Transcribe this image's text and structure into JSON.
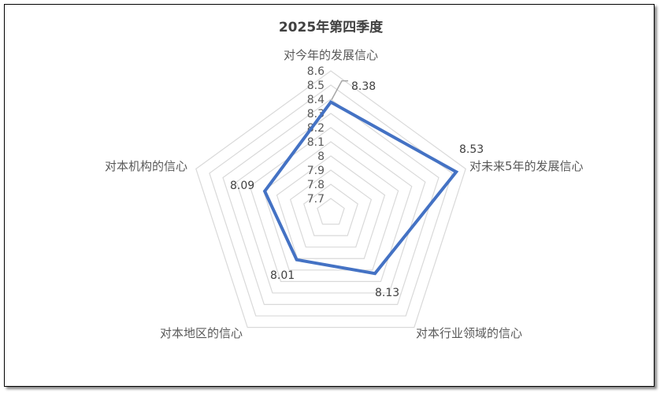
{
  "chart_data": {
    "type": "radar",
    "title": "2025年第四季度",
    "categories": [
      "对今年的发展信心",
      "对未来5年的发展信心",
      "对本行业领域的信心",
      "对本地区的信心",
      "对本机构的信心"
    ],
    "values": [
      8.38,
      8.53,
      8.13,
      8.01,
      8.09
    ],
    "data_labels": [
      "8.38",
      "8.53",
      "8.13",
      "8.01",
      "8.09"
    ],
    "rlim": [
      7.6,
      8.6
    ],
    "ticks": [
      "7.7",
      "7.8",
      "7.9",
      "8",
      "8.1",
      "8.2",
      "8.3",
      "8.4",
      "8.5",
      "8.6"
    ],
    "grid": true,
    "legend": "none",
    "colors": {
      "series": "#4472C4",
      "grid": "#D9D9D9",
      "text": "#595959"
    }
  }
}
